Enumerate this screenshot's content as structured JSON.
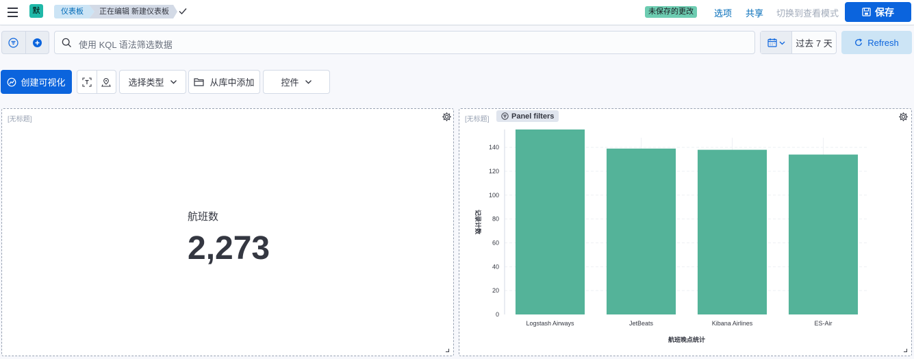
{
  "header": {
    "space_initial": "默",
    "breadcrumbs": [
      "仪表板",
      "正在编辑 新建仪表板"
    ],
    "unsaved_badge": "未保存的更改",
    "links": [
      "选项",
      "共享"
    ],
    "disabled_link": "切换到查看模式",
    "save_label": "保存",
    "accent_color": "#0b64dd"
  },
  "query": {
    "search_placeholder": "使用 KQL 语法筛选数据",
    "date_range": "过去 7 天",
    "refresh_label": "Refresh"
  },
  "toolbar": {
    "create_label": "创建可视化",
    "select_type_label": "选择类型",
    "add_from_library_label": "从库中添加",
    "controls_label": "控件"
  },
  "panels": {
    "metric": {
      "title": "[无标题]",
      "label": "航班数",
      "value": "2,273"
    },
    "chart": {
      "title": "[无标题]",
      "filters_badge": "Panel filters"
    }
  },
  "chart_data": {
    "type": "bar",
    "categories": [
      "Logstash Airways",
      "JetBeats",
      "Kibana Airlines",
      "ES-Air"
    ],
    "values": [
      155,
      139,
      138,
      134
    ],
    "title": "",
    "xlabel": "航班晚点统计",
    "ylabel": "记录计数",
    "ylim": [
      0,
      155
    ],
    "yticks": [
      0,
      20,
      40,
      60,
      80,
      100,
      120,
      140
    ],
    "bar_color": "#54b399",
    "grid": true
  }
}
